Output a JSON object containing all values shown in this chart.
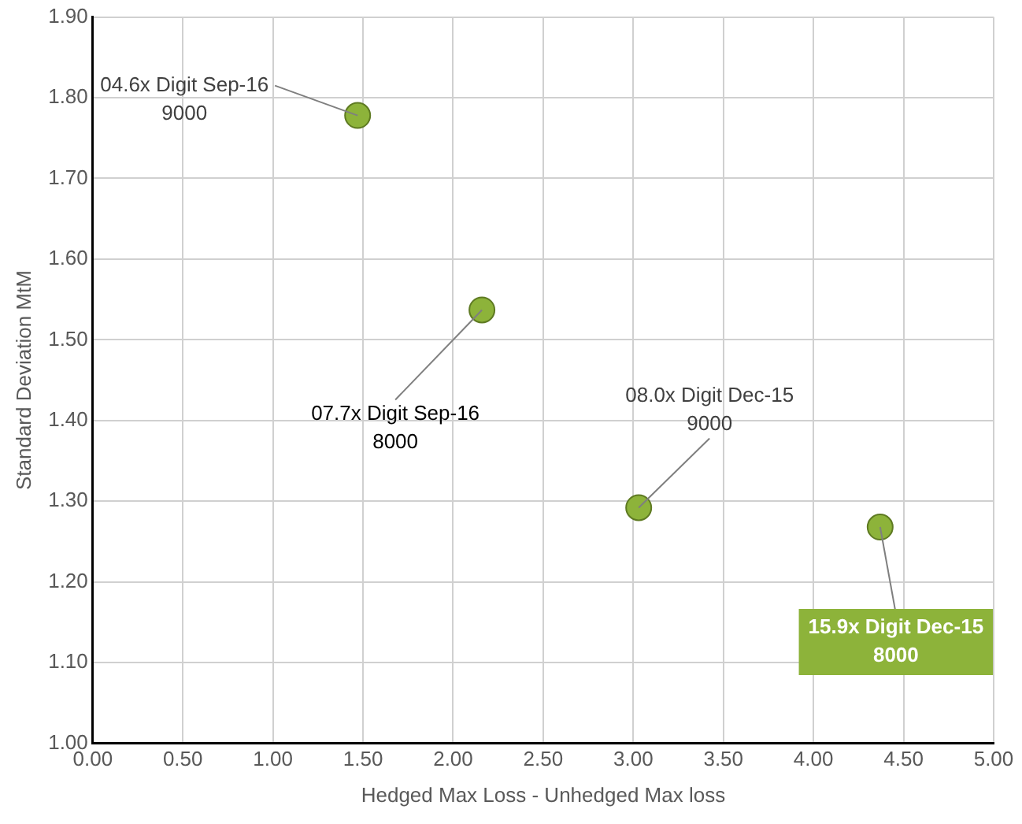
{
  "chart_data": {
    "type": "scatter",
    "xlabel": "Hedged Max Loss - Unhedged Max loss",
    "ylabel": "Standard Deviation MtM",
    "x": [
      1.47,
      2.16,
      3.03,
      4.37
    ],
    "values": [
      1.778,
      1.537,
      1.292,
      1.268
    ],
    "color": "#8db33a",
    "marker": "circle",
    "grid": true,
    "legend": false,
    "xlim": [
      0,
      5
    ],
    "xticks": [
      {
        "value": 0,
        "label": "0.00"
      },
      {
        "value": 0.5,
        "label": "0.50"
      },
      {
        "value": 1,
        "label": "1.00"
      },
      {
        "value": 1.5,
        "label": "1.50"
      },
      {
        "value": 2,
        "label": "2.00"
      },
      {
        "value": 2.5,
        "label": "2.50"
      },
      {
        "value": 3,
        "label": "3.00"
      },
      {
        "value": 3.5,
        "label": "3.50"
      },
      {
        "value": 4,
        "label": "4.00"
      },
      {
        "value": 4.5,
        "label": "4.50"
      },
      {
        "value": 5,
        "label": "5.00"
      }
    ],
    "ylim": [
      1,
      1.9
    ],
    "yticks": [
      {
        "value": 1,
        "label": "1.00"
      },
      {
        "value": 1.1,
        "label": "1.10"
      },
      {
        "value": 1.2,
        "label": "1.20"
      },
      {
        "value": 1.3,
        "label": "1.30"
      },
      {
        "value": 1.4,
        "label": "1.40"
      },
      {
        "value": 1.5,
        "label": "1.50"
      },
      {
        "value": 1.6,
        "label": "1.60"
      },
      {
        "value": 1.7,
        "label": "1.70"
      },
      {
        "value": 1.8,
        "label": "1.80"
      },
      {
        "value": 1.9,
        "label": "1.90"
      }
    ],
    "annotations": [
      {
        "text": "04.6x Digit Sep-16\n9000",
        "x": 1.47,
        "y": 1.778
      },
      {
        "text": "07.7x Digit Sep-16\n8000",
        "x": 2.16,
        "y": 1.537
      },
      {
        "text": "08.0x Digit Dec-15\n9000",
        "x": 3.03,
        "y": 1.292
      },
      {
        "text": "15.9x Digit Dec-15\n8000",
        "x": 4.37,
        "y": 1.268
      }
    ]
  }
}
